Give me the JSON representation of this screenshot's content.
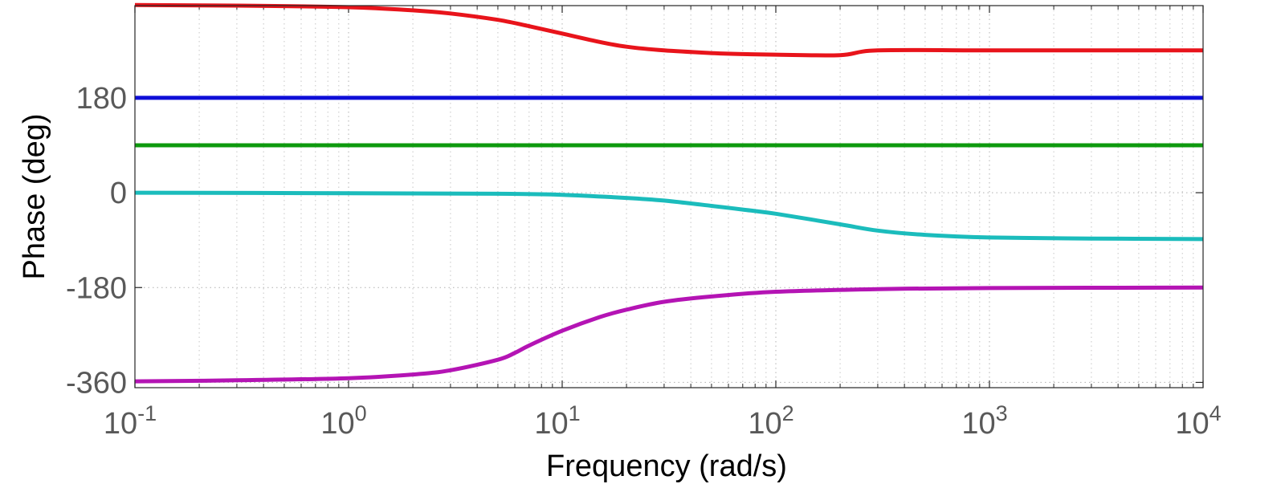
{
  "chart_data": {
    "type": "line",
    "title": "",
    "xlabel": "Frequency  (rad/s)",
    "ylabel": "Phase (deg)",
    "x_scale": "log",
    "xlim": [
      0.1,
      10000
    ],
    "ylim": [
      -370,
      355
    ],
    "grid": true,
    "x_ticks": [
      {
        "value": 0.1,
        "base": "10",
        "exp": "-1"
      },
      {
        "value": 1,
        "base": "10",
        "exp": "0"
      },
      {
        "value": 10,
        "base": "10",
        "exp": "1"
      },
      {
        "value": 100,
        "base": "10",
        "exp": "2"
      },
      {
        "value": 1000,
        "base": "10",
        "exp": "3"
      },
      {
        "value": 10000,
        "base": "10",
        "exp": "4"
      }
    ],
    "y_ticks": [
      {
        "value": 180,
        "label": "180"
      },
      {
        "value": 0,
        "label": "0"
      },
      {
        "value": -180,
        "label": "-180"
      },
      {
        "value": -360,
        "label": "-360"
      }
    ],
    "series": [
      {
        "color": "#e8141b",
        "x": [
          0.1,
          0.3,
          1,
          2,
          3,
          5,
          7,
          10,
          15,
          20,
          30,
          50,
          70,
          100,
          200,
          300,
          1000,
          3000,
          10000
        ],
        "y": [
          356,
          355,
          352,
          346,
          340,
          328,
          316,
          302,
          286,
          277,
          270,
          265,
          263,
          262,
          261,
          270,
          270,
          270,
          270
        ]
      },
      {
        "color": "#0e0ed8",
        "x": [
          0.1,
          10000
        ],
        "y": [
          180,
          180
        ]
      },
      {
        "color": "#0e9a0e",
        "x": [
          0.1,
          10000
        ],
        "y": [
          90,
          90
        ]
      },
      {
        "color": "#1bbcbc",
        "x": [
          0.1,
          1,
          5,
          10,
          20,
          30,
          50,
          70,
          100,
          200,
          300,
          500,
          1000,
          3000,
          10000
        ],
        "y": [
          0,
          -1,
          -2,
          -4,
          -10,
          -15,
          -25,
          -32,
          -40,
          -60,
          -72,
          -80,
          -85,
          -87,
          -88
        ]
      },
      {
        "color": "#b414b4",
        "x": [
          0.1,
          0.3,
          1,
          2,
          3,
          5,
          6,
          7,
          10,
          15,
          20,
          30,
          50,
          100,
          300,
          1000,
          10000
        ],
        "y": [
          -358,
          -356,
          -352,
          -345,
          -337,
          -317,
          -304,
          -290,
          -262,
          -236,
          -222,
          -207,
          -197,
          -188,
          -183,
          -181,
          -180
        ]
      }
    ]
  }
}
